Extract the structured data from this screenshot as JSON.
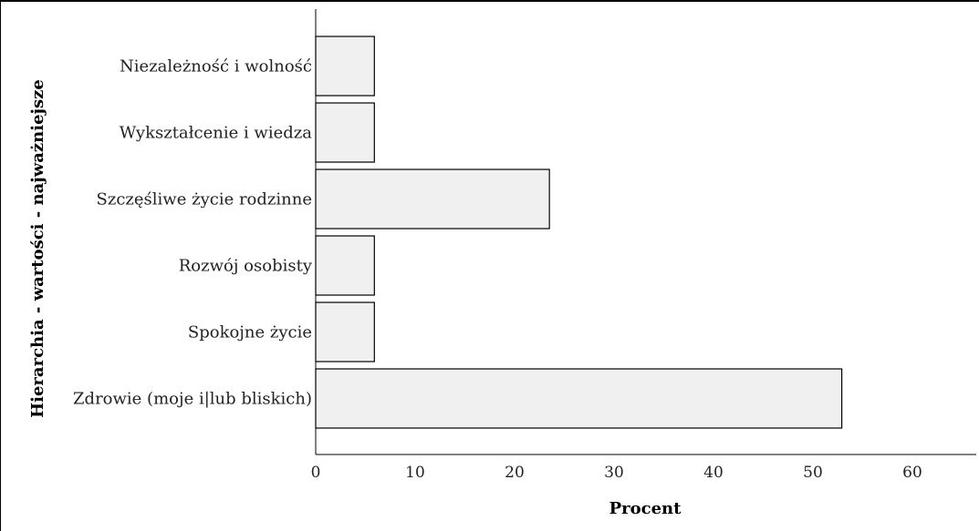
{
  "chart_data": {
    "type": "bar",
    "orientation": "horizontal",
    "categories": [
      "Niezależność i wolność",
      "Wykształcenie i wiedza",
      "Szczęśliwe życie rodzinne",
      "Rozwój osobisty",
      "Spokojne życie",
      "Zdrowie (moje i|lub bliskich)"
    ],
    "values": [
      5.9,
      5.9,
      23.5,
      5.9,
      5.9,
      52.9
    ],
    "xlabel": "Procent",
    "ylabel": "Hierarchia - wartości - najważniejsze",
    "xlim": [
      0,
      66
    ],
    "xticks": [
      "0",
      "10",
      "20",
      "30",
      "40",
      "50",
      "60"
    ],
    "grid": false,
    "bar_color": "#f0f0f0",
    "bar_stroke": "#000000"
  }
}
